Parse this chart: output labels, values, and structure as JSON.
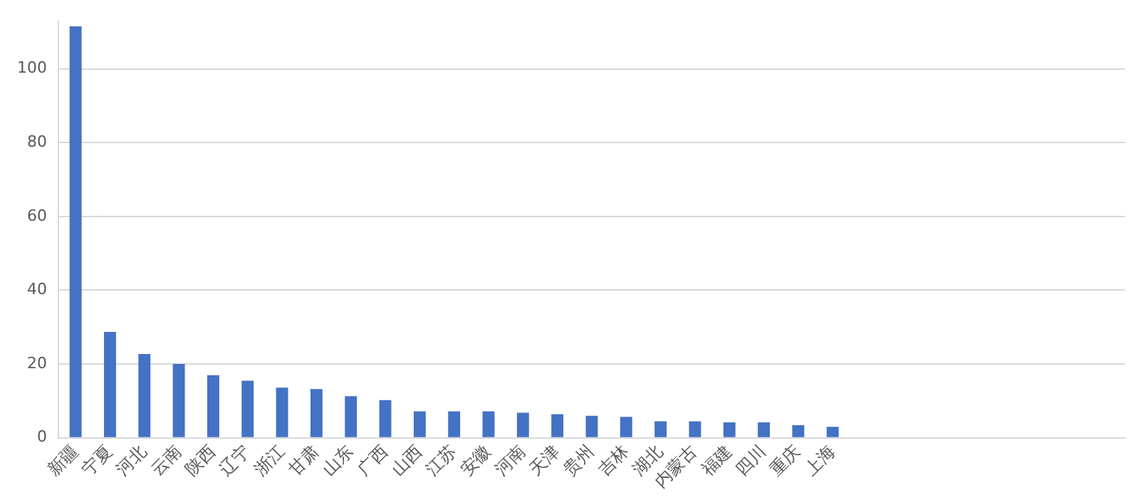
{
  "chart_data": {
    "type": "bar",
    "categories": [
      "新疆",
      "宁夏",
      "河北",
      "云南",
      "陕西",
      "辽宁",
      "浙江",
      "甘肃",
      "山东",
      "广西",
      "山西",
      "江苏",
      "安徽",
      "河南",
      "天津",
      "贵州",
      "吉林",
      "湖北",
      "内蒙古",
      "福建",
      "四川",
      "重庆",
      "上海",
      null,
      null,
      null,
      null,
      null,
      null,
      null,
      null
    ],
    "values": [
      111.5,
      28.7,
      22.7,
      20.0,
      17.0,
      15.5,
      13.6,
      13.2,
      11.3,
      10.2,
      7.2,
      7.2,
      7.2,
      6.8,
      6.4,
      6.0,
      5.7,
      4.5,
      4.5,
      4.2,
      4.2,
      3.4,
      3.0,
      null,
      null,
      null,
      null,
      null,
      null,
      null,
      null
    ],
    "color": "#4472c4",
    "ylim": [
      0,
      113
    ],
    "yticks": [
      0,
      20,
      40,
      60,
      80,
      100
    ],
    "grid": "y"
  }
}
